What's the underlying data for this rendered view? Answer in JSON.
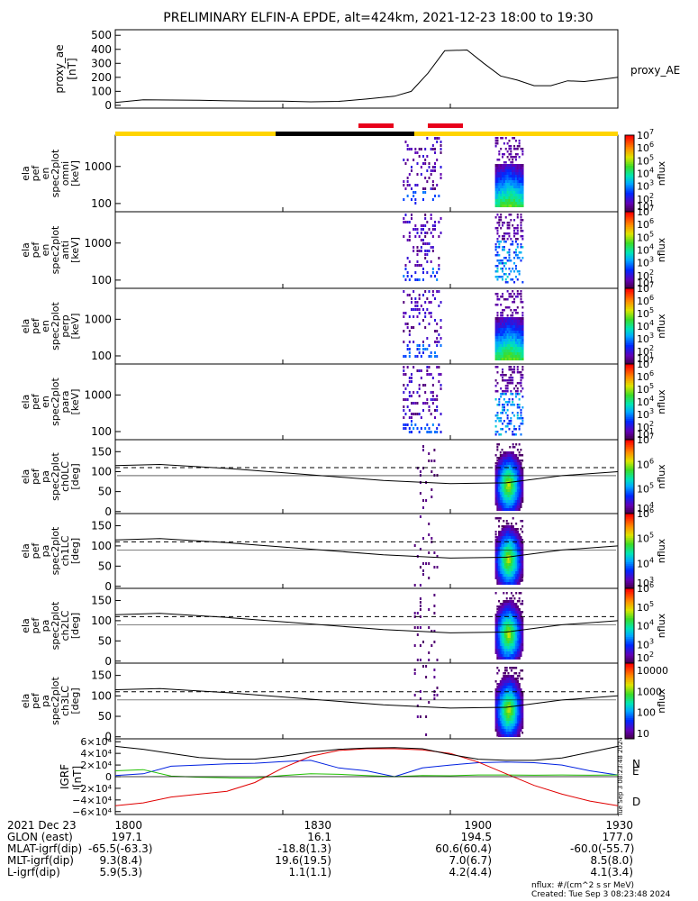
{
  "title": "PRELIMINARY ELFIN-A EPDE, alt=424km, 2021-12-23 18:00 to 19:30",
  "colors": {
    "orbit_bar_yellow": "#ffd400",
    "orbit_bar_black": "#000000",
    "orbit_bar_red": "#e8001a",
    "ae_line": "#000000",
    "dashed_line": "#000000",
    "igrf_N": "#0020e0",
    "igrf_E": "#20c000",
    "igrf_D": "#e00000",
    "igrf_total": "#000000"
  },
  "footer": {
    "rows": [
      {
        "label": "2021 Dec 23",
        "values": [
          "1800",
          "1830",
          "1900",
          "1930"
        ]
      },
      {
        "label": "GLON (east)",
        "values": [
          "197.1",
          "16.1",
          "194.5",
          "177.0"
        ]
      },
      {
        "label": "MLAT-igrf(dip)",
        "values": [
          "-65.5(-63.3)",
          "-18.8(1.3)",
          "60.6(60.4)",
          "-60.0(-55.7)"
        ]
      },
      {
        "label": "MLT-igrf(dip)",
        "values": [
          "9.3(8.4)",
          "19.6(19.5)",
          "7.0(6.7)",
          "8.5(8.0)"
        ]
      },
      {
        "label": "L-igrf(dip)",
        "values": [
          "5.9(5.3)",
          "1.1(1.1)",
          "4.2(4.4)",
          "4.1(3.4)"
        ]
      }
    ],
    "units_note": "nflux: #/(cm^2 s sr MeV)",
    "created": "Created: Tue Sep  3 08:23:48 2024",
    "side_stamp": "Tue Sep  3 08:23:48 2024"
  },
  "chart_data": [
    {
      "type": "line",
      "panel": "proxy_ae",
      "ylabel": [
        "proxy_ae",
        "[nT]"
      ],
      "series_label": "proxy_AE",
      "ylim": [
        -20,
        540
      ],
      "yticks": [
        0,
        100,
        200,
        300,
        400,
        500
      ],
      "x": [
        "18:00",
        "18:05",
        "18:10",
        "18:15",
        "18:20",
        "18:25",
        "18:30",
        "18:35",
        "18:40",
        "18:45",
        "18:50",
        "18:53",
        "18:56",
        "18:59",
        "19:03",
        "19:06",
        "19:09",
        "19:12",
        "19:15",
        "19:18",
        "19:21",
        "19:24",
        "19:27",
        "19:30"
      ],
      "values": [
        20,
        40,
        38,
        36,
        32,
        30,
        30,
        25,
        28,
        45,
        65,
        100,
        230,
        390,
        395,
        300,
        210,
        180,
        140,
        140,
        175,
        170,
        185,
        200
      ]
    },
    {
      "type": "heatmap",
      "panel": "ela_pef_en_spec2plot_omni",
      "ylabel": [
        "ela",
        "pef",
        "en",
        "spec2plot",
        "omni",
        "[keV]"
      ],
      "yscale": "log",
      "ylim": [
        60,
        7000
      ],
      "yticks": [
        100,
        1000
      ],
      "zlabel": "nflux",
      "zscale": "log",
      "zlim": [
        1,
        10000000
      ],
      "ztick_exponents": [
        1,
        2,
        3,
        4,
        5,
        6,
        7
      ],
      "orbit_intervals_min": [
        [
          50.5,
          61.5
        ],
        [
          67.5,
          73.5
        ]
      ]
    },
    {
      "type": "heatmap",
      "panel": "ela_pef_en_spec2plot_anti",
      "ylabel": [
        "ela",
        "pef",
        "en",
        "spec2plot",
        "anti",
        "[keV]"
      ],
      "yscale": "log",
      "ylim": [
        60,
        7000
      ],
      "yticks": [
        100,
        1000
      ],
      "zlabel": "nflux",
      "zscale": "log",
      "zlim": [
        1,
        10000000
      ],
      "ztick_exponents": [
        1,
        2,
        3,
        4,
        5,
        6,
        7
      ]
    },
    {
      "type": "heatmap",
      "panel": "ela_pef_en_spec2plot_perp",
      "ylabel": [
        "ela",
        "pef",
        "en",
        "spec2plot",
        "perp",
        "[keV]"
      ],
      "yscale": "log",
      "ylim": [
        60,
        7000
      ],
      "yticks": [
        100,
        1000
      ],
      "zlabel": "nflux",
      "zscale": "log",
      "zlim": [
        1,
        10000000
      ],
      "ztick_exponents": [
        1,
        2,
        3,
        4,
        5,
        6,
        7
      ]
    },
    {
      "type": "heatmap",
      "panel": "ela_pef_en_spec2plot_para",
      "ylabel": [
        "ela",
        "pef",
        "en",
        "spec2plot",
        "para",
        "[keV]"
      ],
      "yscale": "log",
      "ylim": [
        60,
        7000
      ],
      "yticks": [
        100,
        1000
      ],
      "zlabel": "nflux",
      "zscale": "log",
      "zlim": [
        1,
        10000000
      ],
      "ztick_exponents": [
        1,
        2,
        3,
        4,
        5,
        6,
        7
      ]
    },
    {
      "type": "heatmap",
      "panel": "ela_pef_pa_spec2plot_ch0LC",
      "ylabel": [
        "ela",
        "pef",
        "pa",
        "spec2plot",
        "ch0LC",
        "[deg]"
      ],
      "ylim": [
        -5,
        180
      ],
      "yticks": [
        0,
        50,
        100,
        150
      ],
      "zlabel": "nflux",
      "zscale": "log",
      "zlim": [
        1000,
        10000000
      ],
      "ztick_exponents": [
        4,
        5,
        6,
        7
      ]
    },
    {
      "type": "heatmap",
      "panel": "ela_pef_pa_spec2plot_ch1LC",
      "ylabel": [
        "ela",
        "pef",
        "pa",
        "spec2plot",
        "ch1LC",
        "[deg]"
      ],
      "ylim": [
        -5,
        180
      ],
      "yticks": [
        0,
        50,
        100,
        150
      ],
      "zlabel": "nflux",
      "zscale": "log",
      "zlim": [
        100,
        10000000
      ],
      "ztick_exponents": [
        3,
        4,
        5,
        6
      ]
    },
    {
      "type": "heatmap",
      "panel": "ela_pef_pa_spec2plot_ch2LC",
      "ylabel": [
        "ela",
        "pef",
        "pa",
        "spec2plot",
        "ch2LC",
        "[deg]"
      ],
      "ylim": [
        -5,
        180
      ],
      "yticks": [
        0,
        50,
        100,
        150
      ],
      "zlabel": "nflux",
      "zscale": "log",
      "zlim": [
        100,
        1000000
      ],
      "ztick_exponents": [
        2,
        3,
        4,
        5,
        6
      ]
    },
    {
      "type": "heatmap",
      "panel": "ela_pef_pa_spec2plot_ch3LC",
      "ylabel": [
        "ela",
        "pef",
        "pa",
        "spec2plot",
        "ch3LC",
        "[deg]"
      ],
      "ylim": [
        -5,
        180
      ],
      "yticks": [
        0,
        50,
        100,
        150
      ],
      "zlabel": "nflux",
      "zscale": "linear-log",
      "zlim": [
        10,
        10000
      ],
      "zticks": [
        "10000",
        "1000",
        "100",
        "10"
      ]
    },
    {
      "type": "line",
      "panel": "igrf",
      "ylabel": [
        "IGRF",
        "[nT]"
      ],
      "ylim": [
        -65000,
        65000
      ],
      "yticks": [
        -60000,
        -40000,
        -20000,
        0,
        20000,
        40000,
        60000
      ],
      "ytick_labels": [
        "−6×10⁴",
        "−4×10⁴",
        "−2×10⁴",
        "0",
        "2×10⁴",
        "4×10⁴",
        "6×10⁴"
      ],
      "x_min": [
        0,
        5,
        10,
        15,
        20,
        25,
        30,
        35,
        40,
        45,
        50,
        55,
        60,
        65,
        70,
        75,
        80,
        85,
        90
      ],
      "series": [
        {
          "name": "N",
          "values": [
            2000,
            5000,
            18000,
            20000,
            22000,
            23000,
            26000,
            28000,
            15000,
            10000,
            0,
            15000,
            20000,
            24000,
            25000,
            24000,
            20000,
            10000,
            3000
          ]
        },
        {
          "name": "E",
          "values": [
            10000,
            12000,
            1000,
            -1000,
            -2000,
            -2500,
            2000,
            5000,
            4000,
            2000,
            0,
            2000,
            1500,
            3000,
            3000,
            2500,
            3000,
            2500,
            3000
          ]
        },
        {
          "name": "D",
          "values": [
            -50000,
            -45000,
            -35000,
            -30000,
            -25000,
            -10000,
            15000,
            35000,
            45000,
            48000,
            48000,
            46000,
            40000,
            25000,
            5000,
            -15000,
            -30000,
            -42000,
            -50000
          ]
        },
        {
          "name": "",
          "values": [
            52000,
            47000,
            40000,
            33000,
            30000,
            30000,
            35000,
            42000,
            47000,
            49000,
            50000,
            48000,
            38000,
            30000,
            28000,
            28000,
            32000,
            42000,
            52000
          ]
        }
      ]
    }
  ]
}
